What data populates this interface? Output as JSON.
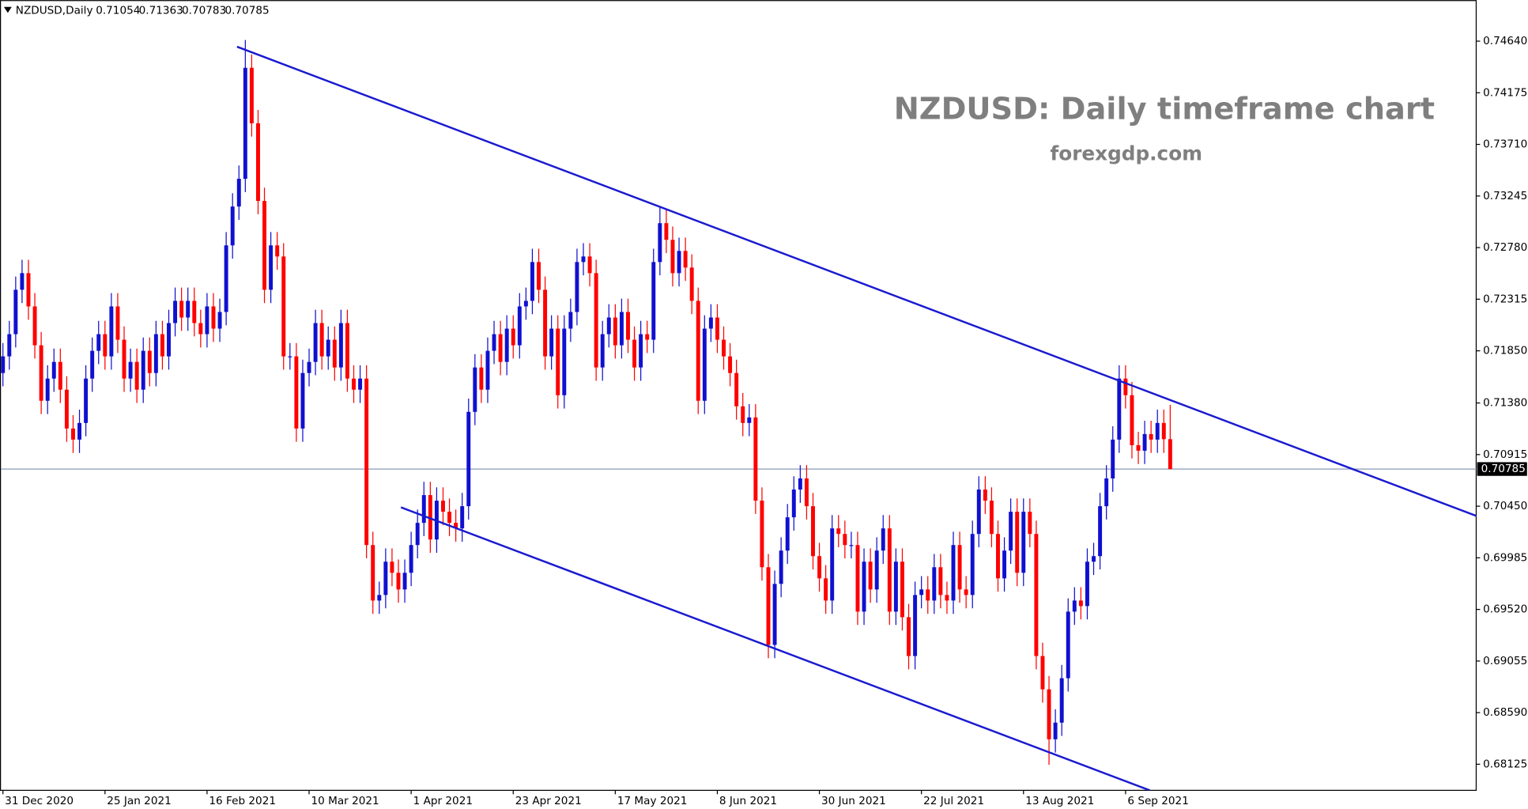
{
  "chart_data": {
    "type": "candlestick",
    "symbol": "NZDUSD,Daily",
    "title": "NZDUSD: Daily timeframe chart",
    "subtitle": "forexgdp.com",
    "up_color": "#1010d0",
    "down_color": "#ff0000",
    "grid": false,
    "categories": [
      "31 Dec 2020",
      null,
      null,
      null,
      null,
      null,
      null,
      null,
      null,
      null,
      null,
      null,
      null,
      null,
      null,
      null,
      "25 Jan 2021",
      null,
      null,
      null,
      null,
      null,
      null,
      null,
      null,
      null,
      null,
      null,
      null,
      null,
      null,
      null,
      "16 Feb 2021",
      null,
      null,
      null,
      null,
      null,
      null,
      null,
      null,
      null,
      null,
      null,
      null,
      null,
      null,
      null,
      "10 Mar 2021",
      null,
      null,
      null,
      null,
      null,
      null,
      null,
      null,
      null,
      null,
      null,
      null,
      null,
      null,
      null,
      "1 Apr 2021",
      null,
      null,
      null,
      null,
      null,
      null,
      null,
      null,
      null,
      null,
      null,
      null,
      null,
      null,
      null,
      "23 Apr 2021",
      null,
      null,
      null,
      null,
      null,
      null,
      null,
      null,
      null,
      null,
      null,
      null,
      null,
      null,
      null,
      "17 May 2021",
      null,
      null,
      null,
      null,
      null,
      null,
      null,
      null,
      null,
      null,
      null,
      null,
      null,
      null,
      null,
      "8 Jun 2021",
      null,
      null,
      null,
      null,
      null,
      null,
      null,
      null,
      null,
      null,
      null,
      null,
      null,
      null,
      null,
      "30 Jun 2021",
      null,
      null,
      null,
      null,
      null,
      null,
      null,
      null,
      null,
      null,
      null,
      null,
      null,
      null,
      null,
      "22 Jul 2021",
      null,
      null,
      null,
      null,
      null,
      null,
      null,
      null,
      null,
      null,
      null,
      null,
      null,
      null,
      null,
      "13 Aug 2021",
      null,
      null,
      null,
      null,
      null,
      null,
      null,
      null,
      null,
      null,
      null,
      null,
      null,
      null,
      null,
      "6 Sep 2021",
      null,
      null,
      null,
      null,
      null,
      null,
      null
    ],
    "open": [
      0.7165,
      0.718,
      0.72,
      0.724,
      0.7255,
      0.7225,
      0.719,
      0.714,
      0.716,
      0.7175,
      0.715,
      0.7115,
      0.7105,
      0.712,
      0.716,
      0.7185,
      0.72,
      0.718,
      0.7225,
      0.7195,
      0.716,
      0.7175,
      0.715,
      0.7185,
      0.7165,
      0.72,
      0.718,
      0.721,
      0.723,
      0.7215,
      0.723,
      0.721,
      0.72,
      0.7225,
      0.7205,
      0.722,
      0.728,
      0.7315,
      0.734,
      0.744,
      0.739,
      0.732,
      0.724,
      0.728,
      0.727,
      0.718,
      0.718,
      0.7115,
      0.7165,
      0.7175,
      0.721,
      0.718,
      0.7195,
      0.717,
      0.721,
      0.716,
      0.715,
      0.716,
      0.701,
      0.696,
      0.6965,
      0.6995,
      0.6985,
      0.697,
      0.6985,
      0.701,
      0.703,
      0.7055,
      0.7015,
      0.705,
      0.704,
      0.703,
      0.7025,
      0.7045,
      0.713,
      0.717,
      0.715,
      0.7185,
      0.72,
      0.7175,
      0.7205,
      0.719,
      0.7225,
      0.723,
      0.7265,
      0.724,
      0.718,
      0.7205,
      0.7145,
      0.7205,
      0.722,
      0.7265,
      0.727,
      0.7255,
      0.717,
      0.72,
      0.7215,
      0.719,
      0.722,
      0.7195,
      0.717,
      0.72,
      0.7195,
      0.7265,
      0.73,
      0.7285,
      0.7255,
      0.7275,
      0.726,
      0.723,
      0.714,
      0.7205,
      0.7215,
      0.7195,
      0.718,
      0.7165,
      0.7135,
      0.712,
      0.7125,
      0.705,
      0.699,
      0.692,
      0.6975,
      0.7005,
      0.7035,
      0.706,
      0.707,
      0.7045,
      0.7,
      0.698,
      0.696,
      0.7025,
      0.702,
      0.701,
      0.701,
      0.695,
      0.6995,
      0.697,
      0.7005,
      0.7025,
      0.695,
      0.6995,
      0.6945,
      0.691,
      0.6965,
      0.697,
      0.696,
      0.699,
      0.6965,
      0.696,
      0.701,
      0.697,
      0.6965,
      0.702,
      0.706,
      0.705,
      0.702,
      0.698,
      0.7005,
      0.704,
      0.6985,
      0.704,
      0.702,
      0.691,
      0.688,
      0.6835,
      0.685,
      0.689,
      0.695,
      0.696,
      0.6955,
      0.6995,
      0.7,
      0.7045,
      0.707,
      0.7105,
      0.716,
      0.7145,
      0.71,
      0.7095,
      0.711,
      0.7105,
      0.712,
      0.71054
    ],
    "high": [
      0.7192,
      0.7212,
      0.7252,
      0.7267,
      0.7267,
      0.7237,
      0.7202,
      0.7172,
      0.7187,
      0.7187,
      0.7162,
      0.7127,
      0.7132,
      0.7172,
      0.7197,
      0.7212,
      0.7212,
      0.7237,
      0.7237,
      0.7207,
      0.7187,
      0.7187,
      0.7197,
      0.7197,
      0.7212,
      0.7212,
      0.7222,
      0.7242,
      0.7242,
      0.7242,
      0.7242,
      0.7222,
      0.7237,
      0.7237,
      0.7232,
      0.7292,
      0.7327,
      0.7352,
      0.7465,
      0.7452,
      0.7402,
      0.7332,
      0.7292,
      0.7292,
      0.7282,
      0.7192,
      0.7192,
      0.7177,
      0.7187,
      0.7222,
      0.7222,
      0.7207,
      0.7207,
      0.7222,
      0.7222,
      0.7172,
      0.7172,
      0.7172,
      0.7022,
      0.6977,
      0.7007,
      0.7007,
      0.6997,
      0.6997,
      0.7022,
      0.7042,
      0.7067,
      0.7067,
      0.7062,
      0.7062,
      0.7052,
      0.7042,
      0.7057,
      0.7142,
      0.7182,
      0.7182,
      0.7197,
      0.7212,
      0.7212,
      0.7217,
      0.7217,
      0.7237,
      0.7242,
      0.7277,
      0.7277,
      0.7252,
      0.7217,
      0.7217,
      0.7217,
      0.7232,
      0.7277,
      0.7282,
      0.7282,
      0.7267,
      0.7212,
      0.7227,
      0.7227,
      0.7232,
      0.7232,
      0.7207,
      0.7212,
      0.7212,
      0.7277,
      0.7315,
      0.7312,
      0.7297,
      0.7287,
      0.7287,
      0.7272,
      0.7242,
      0.7217,
      0.7227,
      0.7227,
      0.7207,
      0.7192,
      0.7177,
      0.7147,
      0.7137,
      0.7137,
      0.7062,
      0.7002,
      0.6987,
      0.7017,
      0.7047,
      0.7072,
      0.7082,
      0.7082,
      0.7057,
      0.7012,
      0.6992,
      0.7037,
      0.7037,
      0.7032,
      0.7022,
      0.7022,
      0.7007,
      0.7007,
      0.7017,
      0.7037,
      0.7037,
      0.7007,
      0.7007,
      0.6957,
      0.6977,
      0.6982,
      0.6982,
      0.7002,
      0.7002,
      0.6977,
      0.7022,
      0.7022,
      0.6982,
      0.7032,
      0.7072,
      0.7072,
      0.7062,
      0.7032,
      0.7017,
      0.7052,
      0.7052,
      0.7052,
      0.7052,
      0.7032,
      0.6922,
      0.6892,
      0.6862,
      0.6902,
      0.6962,
      0.6972,
      0.6972,
      0.7007,
      0.7012,
      0.7057,
      0.7082,
      0.7117,
      0.7172,
      0.7172,
      0.7157,
      0.7112,
      0.7122,
      0.7122,
      0.7132,
      0.7132,
      0.71363
    ],
    "low": [
      0.7153,
      0.7168,
      0.7188,
      0.7228,
      0.7213,
      0.7178,
      0.7128,
      0.7128,
      0.7148,
      0.7138,
      0.7103,
      0.7093,
      0.7093,
      0.7108,
      0.7148,
      0.7173,
      0.7168,
      0.7168,
      0.7183,
      0.7148,
      0.7148,
      0.7138,
      0.7138,
      0.7153,
      0.7153,
      0.7168,
      0.7168,
      0.7198,
      0.7203,
      0.7203,
      0.7198,
      0.7188,
      0.7188,
      0.7193,
      0.7193,
      0.7208,
      0.7268,
      0.7303,
      0.7328,
      0.7378,
      0.7308,
      0.7228,
      0.7228,
      0.7258,
      0.7168,
      0.7168,
      0.7103,
      0.7103,
      0.7153,
      0.7163,
      0.7168,
      0.7168,
      0.7158,
      0.7158,
      0.7148,
      0.7138,
      0.7138,
      0.6998,
      0.6948,
      0.6948,
      0.6953,
      0.6973,
      0.6958,
      0.6958,
      0.6973,
      0.6998,
      0.7018,
      0.7003,
      0.7003,
      0.7028,
      0.7018,
      0.7013,
      0.7013,
      0.7033,
      0.7118,
      0.7138,
      0.7138,
      0.7173,
      0.7163,
      0.7163,
      0.7178,
      0.7178,
      0.7213,
      0.7218,
      0.7228,
      0.7168,
      0.7168,
      0.7133,
      0.7133,
      0.7193,
      0.7208,
      0.7253,
      0.7243,
      0.7158,
      0.7158,
      0.7188,
      0.7178,
      0.7178,
      0.7183,
      0.7158,
      0.7158,
      0.7183,
      0.7183,
      0.7253,
      0.7273,
      0.7243,
      0.7243,
      0.7248,
      0.7218,
      0.7128,
      0.7128,
      0.7193,
      0.7183,
      0.7168,
      0.7153,
      0.7123,
      0.7108,
      0.7108,
      0.7038,
      0.6978,
      0.6908,
      0.6908,
      0.6963,
      0.6993,
      0.7023,
      0.7048,
      0.7033,
      0.6988,
      0.6968,
      0.6948,
      0.6948,
      0.7008,
      0.6998,
      0.6998,
      0.6938,
      0.6938,
      0.6958,
      0.6958,
      0.6993,
      0.6938,
      0.6938,
      0.6933,
      0.6898,
      0.6898,
      0.6953,
      0.6948,
      0.6948,
      0.6953,
      0.6948,
      0.6948,
      0.6958,
      0.6953,
      0.6953,
      0.7008,
      0.7038,
      0.7008,
      0.6968,
      0.6968,
      0.6993,
      0.6973,
      0.6973,
      0.7008,
      0.6898,
      0.6868,
      0.6812,
      0.6823,
      0.6838,
      0.6878,
      0.6938,
      0.6943,
      0.6943,
      0.6983,
      0.6988,
      0.7033,
      0.7058,
      0.7093,
      0.7133,
      0.7088,
      0.7083,
      0.7083,
      0.7093,
      0.7093,
      0.7093,
      0.70783
    ],
    "close": [
      0.718,
      0.72,
      0.724,
      0.7255,
      0.7225,
      0.719,
      0.714,
      0.716,
      0.7175,
      0.715,
      0.7115,
      0.7105,
      0.712,
      0.716,
      0.7185,
      0.72,
      0.718,
      0.7225,
      0.7195,
      0.716,
      0.7175,
      0.715,
      0.7185,
      0.7165,
      0.72,
      0.718,
      0.721,
      0.723,
      0.7215,
      0.723,
      0.721,
      0.72,
      0.7225,
      0.7205,
      0.722,
      0.728,
      0.7315,
      0.734,
      0.744,
      0.739,
      0.732,
      0.724,
      0.728,
      0.727,
      0.718,
      0.718,
      0.7115,
      0.7165,
      0.7175,
      0.721,
      0.718,
      0.7195,
      0.717,
      0.721,
      0.716,
      0.715,
      0.716,
      0.701,
      0.696,
      0.6965,
      0.6995,
      0.6985,
      0.697,
      0.6985,
      0.701,
      0.703,
      0.7055,
      0.7015,
      0.705,
      0.704,
      0.703,
      0.7025,
      0.7045,
      0.713,
      0.717,
      0.715,
      0.7185,
      0.72,
      0.7175,
      0.7205,
      0.719,
      0.7225,
      0.723,
      0.7265,
      0.724,
      0.718,
      0.7205,
      0.7145,
      0.7205,
      0.722,
      0.7265,
      0.727,
      0.7255,
      0.717,
      0.72,
      0.7215,
      0.719,
      0.722,
      0.7195,
      0.717,
      0.72,
      0.7195,
      0.7265,
      0.73,
      0.7285,
      0.7255,
      0.7275,
      0.726,
      0.723,
      0.714,
      0.7205,
      0.7215,
      0.7195,
      0.718,
      0.7165,
      0.7135,
      0.712,
      0.7125,
      0.705,
      0.699,
      0.692,
      0.6975,
      0.7005,
      0.7035,
      0.706,
      0.707,
      0.7045,
      0.7,
      0.698,
      0.696,
      0.7025,
      0.702,
      0.701,
      0.701,
      0.695,
      0.6995,
      0.697,
      0.7005,
      0.7025,
      0.695,
      0.6995,
      0.6945,
      0.691,
      0.6965,
      0.697,
      0.696,
      0.699,
      0.6965,
      0.696,
      0.701,
      0.697,
      0.6965,
      0.702,
      0.706,
      0.705,
      0.702,
      0.698,
      0.7005,
      0.704,
      0.6985,
      0.704,
      0.702,
      0.691,
      0.688,
      0.6835,
      0.685,
      0.689,
      0.695,
      0.696,
      0.6955,
      0.6995,
      0.7,
      0.7045,
      0.707,
      0.7105,
      0.716,
      0.7145,
      0.71,
      0.7095,
      0.711,
      0.7105,
      0.712,
      0.71054,
      0.70785
    ],
    "ylim": [
      0.6789,
      0.7501
    ],
    "yticks": [
      {
        "value": 0.7464,
        "label": "0.74640"
      },
      0.74175,
      {
        "value": 0.7371,
        "label": "0.73710"
      },
      0.73245,
      {
        "value": 0.7278,
        "label": "0.72780"
      },
      0.72315,
      {
        "value": 0.7185,
        "label": "0.71850"
      },
      {
        "value": 0.7138,
        "label": "0.71380"
      },
      0.70915,
      {
        "value": 0.7045,
        "label": "0.70450"
      },
      0.69985,
      {
        "value": 0.6952,
        "label": "0.69520"
      },
      0.69055,
      {
        "value": 0.6859,
        "label": "0.68590"
      },
      0.68125
    ],
    "trendlines": [
      {
        "x": [
          36.7,
          231.1
        ],
        "y": [
          0.7459,
          0.7036
        ],
        "color": "#1a1ad0"
      },
      {
        "x": [
          62.4,
          179.8
        ],
        "y": [
          0.7044,
          0.6789
        ],
        "color": "#1a1ad0"
      }
    ],
    "price_line_color": "#8a9bb5"
  }
}
